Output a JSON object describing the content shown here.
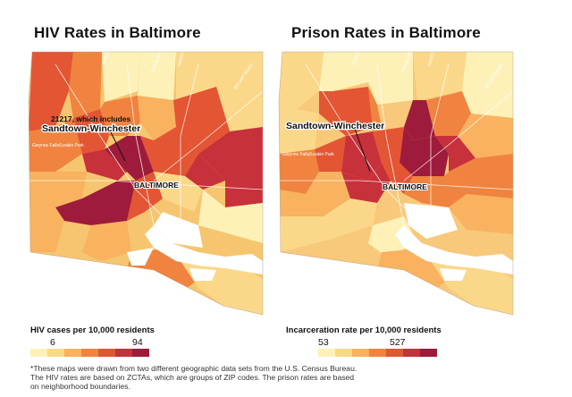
{
  "maps": [
    {
      "title": "HIV Rates in Baltimore",
      "annotation_line1": "21217, which includes",
      "annotation_line2": "Sandtown-Winchester",
      "city_label": "BALTIMORE",
      "park_label": "Gwynns Falls/Leakin Park",
      "legend_title": "HIV cases per 10,000 residents",
      "legend_min": "6",
      "legend_max": "94",
      "legend_colors": [
        "#fdf1b8",
        "#fbd889",
        "#f8b260",
        "#f0833f",
        "#e35533",
        "#c7313b",
        "#9e1b3b"
      ],
      "road_labels": [
        "JONES FALLS EXPY",
        "HARFORD RD",
        "BELAIR ROAD",
        "THE ALAMEDA"
      ]
    },
    {
      "title": "Prison Rates in Baltimore",
      "annotation_line1": "",
      "annotation_line2": "Sandtown-Winchester",
      "city_label": "BALTIMORE",
      "park_label": "Gwynns Falls/Leakin Park",
      "legend_title": "Incarceration rate per 10,000 residents",
      "legend_min": "53",
      "legend_max": "527",
      "legend_colors": [
        "#fdf1b8",
        "#fbd889",
        "#f8b260",
        "#f0833f",
        "#e35533",
        "#c7313b",
        "#9e1b3b"
      ],
      "road_labels": [
        "JONES FALLS EXPY",
        "HARFORD RD",
        "BELAIR ROAD",
        "THE ALAMEDA"
      ]
    }
  ],
  "footnote": [
    "*These maps were drawn from two different geographic data sets from the U.S. Census Bureau.",
    "The HIV rates are based on ZCTAs, which are groups of ZIP codes. The prison rates are based",
    "on neighborhood boundaries."
  ]
}
